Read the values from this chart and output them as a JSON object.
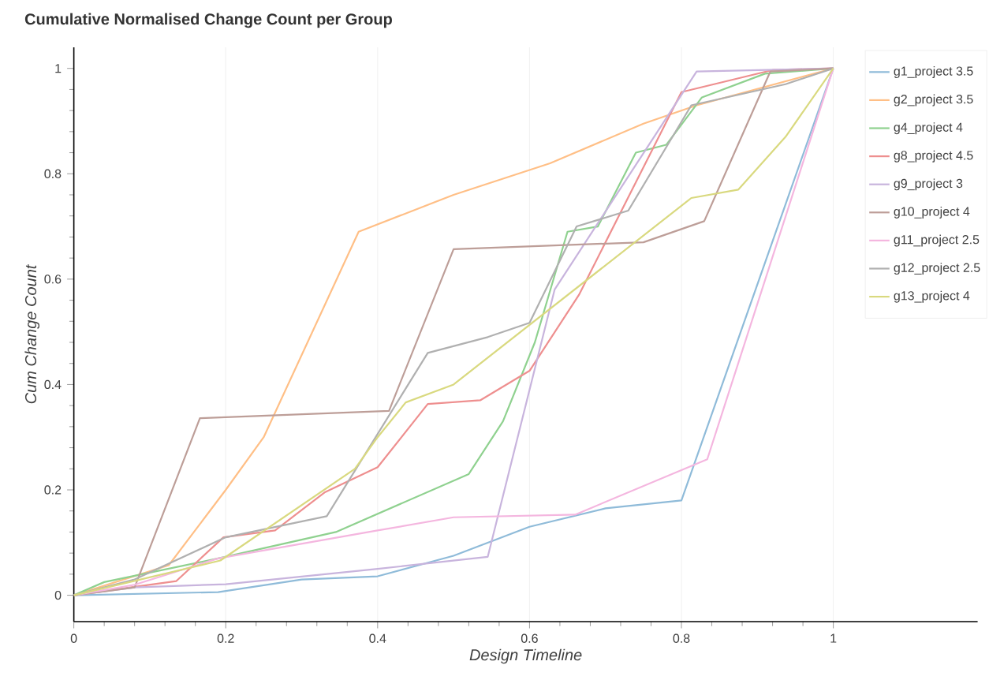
{
  "chart_data": {
    "type": "line",
    "title": "Cumulative Normalised Change Count per Group",
    "xlabel": "Design Timeline",
    "ylabel": "Cum Change Count",
    "xlim": [
      0,
      1.19
    ],
    "ylim": [
      -0.05,
      1.04
    ],
    "xticks": [
      0,
      0.2,
      0.4,
      0.6,
      0.8,
      1
    ],
    "yticks": [
      0,
      0.2,
      0.4,
      0.6,
      0.8,
      1
    ],
    "grid": "x",
    "legend": "top right",
    "line_style": "solid",
    "marker": "none",
    "series": [
      {
        "name": "g1_project 3.5",
        "color": "#8fbbd9",
        "x": [
          0,
          0.19,
          0.3,
          0.4,
          0.5,
          0.6,
          0.7,
          0.8,
          1
        ],
        "values": [
          0,
          0.006,
          0.03,
          0.036,
          0.075,
          0.13,
          0.165,
          0.18,
          1
        ]
      },
      {
        "name": "g2_project 3.5",
        "color": "#ffbf86",
        "x": [
          0,
          0.125,
          0.2,
          0.25,
          0.375,
          0.5,
          0.627,
          0.75,
          0.82,
          1
        ],
        "values": [
          0,
          0.057,
          0.2,
          0.3,
          0.69,
          0.76,
          0.82,
          0.895,
          0.93,
          1
        ]
      },
      {
        "name": "g4_project 4",
        "color": "#8fd18f",
        "x": [
          0,
          0.04,
          0.09,
          0.19,
          0.345,
          0.52,
          0.565,
          0.607,
          0.65,
          0.69,
          0.74,
          0.78,
          0.827,
          0.91,
          1
        ],
        "values": [
          0,
          0.025,
          0.04,
          0.07,
          0.12,
          0.23,
          0.33,
          0.48,
          0.69,
          0.7,
          0.84,
          0.855,
          0.945,
          0.99,
          1
        ]
      },
      {
        "name": "g8_project 4.5",
        "color": "#ee8f8f",
        "x": [
          0,
          0.08,
          0.135,
          0.197,
          0.265,
          0.33,
          0.4,
          0.466,
          0.535,
          0.6,
          0.665,
          0.8,
          0.92,
          1
        ],
        "values": [
          0,
          0.016,
          0.027,
          0.11,
          0.123,
          0.195,
          0.243,
          0.363,
          0.37,
          0.426,
          0.57,
          0.955,
          0.997,
          1
        ]
      },
      {
        "name": "g9_project 3",
        "color": "#c8b4dd",
        "x": [
          0,
          0.08,
          0.2,
          0.4,
          0.545,
          0.633,
          0.82,
          1
        ],
        "values": [
          0,
          0.015,
          0.021,
          0.05,
          0.073,
          0.58,
          0.994,
          1
        ]
      },
      {
        "name": "g10_project 4",
        "color": "#bd9e98",
        "x": [
          0,
          0.08,
          0.166,
          0.415,
          0.5,
          0.75,
          0.83,
          0.917,
          1
        ],
        "values": [
          0,
          0.015,
          0.336,
          0.35,
          0.657,
          0.67,
          0.71,
          0.994,
          1
        ]
      },
      {
        "name": "g11_project 2.5",
        "color": "#f4b6df",
        "x": [
          0,
          0.08,
          0.19,
          0.4,
          0.5,
          0.66,
          0.834,
          1
        ],
        "values": [
          0,
          0.02,
          0.07,
          0.123,
          0.148,
          0.153,
          0.258,
          1
        ]
      },
      {
        "name": "g12_project 2.5",
        "color": "#b0b0b0",
        "x": [
          0,
          0.08,
          0.2,
          0.333,
          0.466,
          0.545,
          0.6,
          0.662,
          0.73,
          0.813,
          0.937,
          1
        ],
        "values": [
          0,
          0.03,
          0.11,
          0.15,
          0.46,
          0.49,
          0.517,
          0.7,
          0.73,
          0.93,
          0.97,
          1
        ]
      },
      {
        "name": "g13_project 4",
        "color": "#d9d97f",
        "x": [
          0,
          0.193,
          0.37,
          0.4,
          0.437,
          0.5,
          0.813,
          0.875,
          0.937,
          1
        ],
        "values": [
          0,
          0.066,
          0.24,
          0.3,
          0.366,
          0.4,
          0.754,
          0.77,
          0.87,
          1
        ]
      }
    ]
  }
}
